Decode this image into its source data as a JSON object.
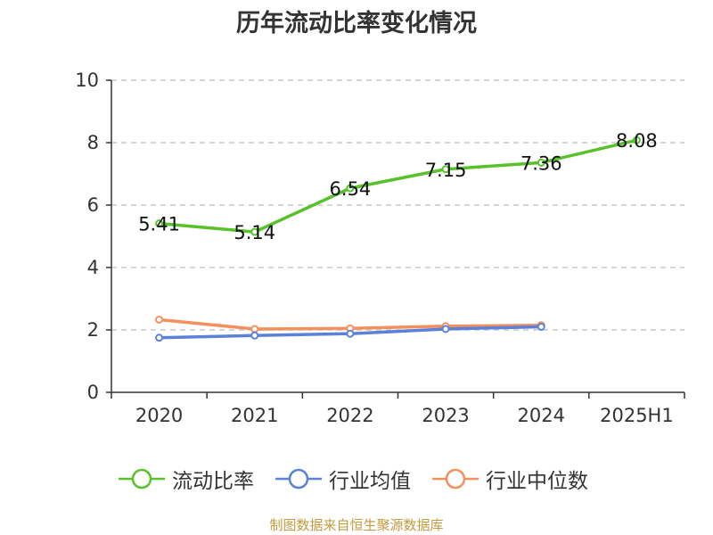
{
  "title": "历年流动比率变化情况",
  "source": "制图数据来自恒生聚源数据库",
  "chart_data": {
    "type": "line",
    "title": "历年流动比率变化情况",
    "categories": [
      "2020",
      "2021",
      "2022",
      "2023",
      "2024",
      "2025H1"
    ],
    "ylim": [
      0,
      10
    ],
    "yticks": [
      0,
      2,
      4,
      6,
      8,
      10
    ],
    "grid": true,
    "legend_position": "bottom",
    "series": [
      {
        "name": "流动比率",
        "color": "#58c22a",
        "values": [
          5.41,
          5.14,
          6.54,
          7.15,
          7.36,
          8.08
        ],
        "labels": [
          "5.41",
          "5.14",
          "6.54",
          "7.15",
          "7.36",
          "8.08"
        ]
      },
      {
        "name": "行业均值",
        "color": "#5b82d8",
        "values": [
          1.75,
          1.82,
          1.88,
          2.03,
          2.1,
          null
        ]
      },
      {
        "name": "行业中位数",
        "color": "#f3915e",
        "values": [
          2.33,
          2.03,
          2.05,
          2.12,
          2.15,
          null
        ]
      }
    ]
  }
}
